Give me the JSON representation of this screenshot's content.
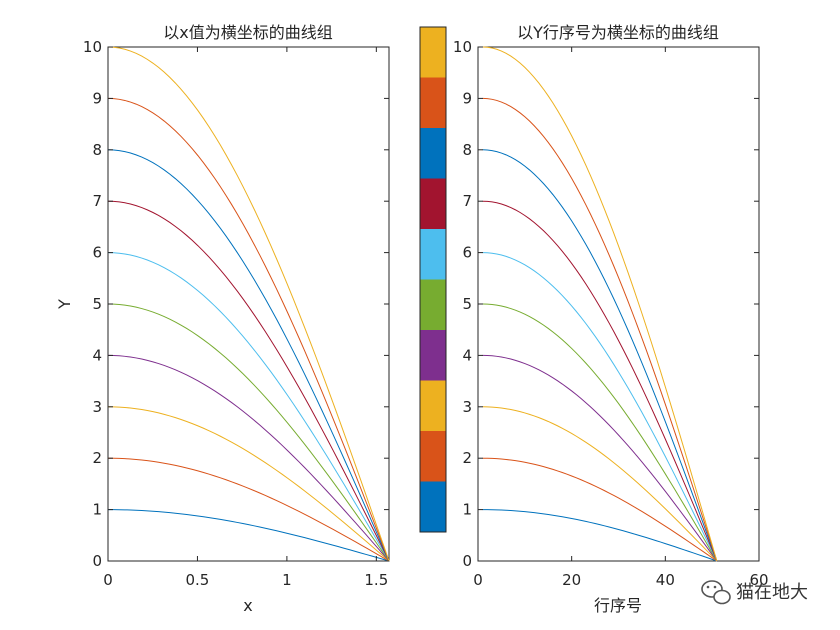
{
  "colors": {
    "axis": "#262626",
    "palette": [
      "#0072BD",
      "#D95319",
      "#EDB120",
      "#7E2F8E",
      "#77AC30",
      "#4DBEEE",
      "#A2142F",
      "#0072BD",
      "#D95319",
      "#EDB120"
    ]
  },
  "chart_data": [
    {
      "type": "line",
      "title": "以x值为横坐标的曲线组",
      "xlabel": "x",
      "ylabel": "Y",
      "xlim": [
        0,
        1.5708
      ],
      "ylim": [
        0,
        10
      ],
      "xticks": [
        0,
        0.5,
        1,
        1.5
      ],
      "xtick_labels": [
        "0",
        "0.5",
        "1",
        "1.5"
      ],
      "yticks": [
        0,
        1,
        2,
        3,
        4,
        5,
        6,
        7,
        8,
        9,
        10
      ],
      "ytick_labels": [
        "0",
        "1",
        "2",
        "3",
        "4",
        "5",
        "6",
        "7",
        "8",
        "9",
        "10"
      ],
      "x_domain": [
        0,
        1.5708
      ],
      "points_per_series": 51,
      "series_formula": "y = k * cos(x)",
      "series_amplitudes": [
        1,
        2,
        3,
        4,
        5,
        6,
        7,
        8,
        9,
        10
      ]
    },
    {
      "type": "line",
      "title": "以Y行序号为横坐标的曲线组",
      "xlabel": "行序号",
      "ylabel": "",
      "xlim": [
        0,
        60
      ],
      "ylim": [
        0,
        10
      ],
      "xticks": [
        0,
        20,
        40,
        60
      ],
      "xtick_labels": [
        "0",
        "20",
        "40",
        "60"
      ],
      "yticks": [
        0,
        1,
        2,
        3,
        4,
        5,
        6,
        7,
        8,
        9,
        10
      ],
      "ytick_labels": [
        "0",
        "1",
        "2",
        "3",
        "4",
        "5",
        "6",
        "7",
        "8",
        "9",
        "10"
      ],
      "x_domain": [
        1,
        51
      ],
      "points_per_series": 51,
      "series_formula": "y = k * cos((i-1)/50 * pi/2)",
      "series_amplitudes": [
        1,
        2,
        3,
        4,
        5,
        6,
        7,
        8,
        9,
        10
      ]
    }
  ],
  "colorbar": {
    "segments": 10,
    "colors_bottom_to_top": [
      "#0072BD",
      "#D95319",
      "#EDB120",
      "#7E2F8E",
      "#77AC30",
      "#4DBEEE",
      "#A2142F",
      "#0072BD",
      "#D95319",
      "#EDB120"
    ]
  },
  "watermark": {
    "text": "猫在地大",
    "icon": "wechat-icon"
  }
}
